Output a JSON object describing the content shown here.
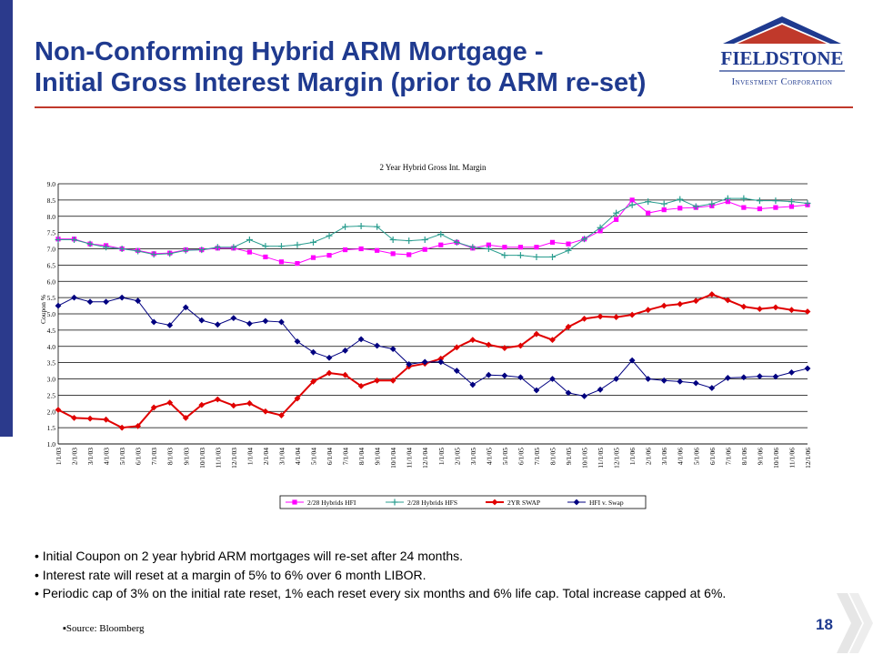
{
  "header": {
    "title_line1": "Non-Conforming Hybrid ARM Mortgage -",
    "title_line2": "Initial Gross Interest Margin (prior to ARM re-set)"
  },
  "logo": {
    "name": "FIELDSTONE",
    "subtitle": "Investment Corporation"
  },
  "bullets": [
    "Initial Coupon on 2 year hybrid ARM mortgages will re-set after 24 months.",
    "Interest rate will reset at a margin of 5% to 6% over 6 month LIBOR.",
    "Periodic cap of 3% on the initial rate reset, 1% each reset every six months and 6% life cap. Total increase capped at 6%."
  ],
  "source": "Source: Bloomberg",
  "page_number": "18",
  "colors": {
    "brand_blue": "#1f3a8f",
    "accent_red": "#c0392b",
    "series_hfi": "#ff00ff",
    "series_hfs": "#2a9d8f",
    "series_swap": "#e00000",
    "series_spread": "#000080"
  },
  "chart_data": {
    "type": "line",
    "title": "2 Year Hybrid Gross Int. Margin",
    "ylabel": "Coupon %",
    "xlabel": "",
    "ylim": [
      1.0,
      9.0
    ],
    "yticks": [
      "1.0",
      "1.5",
      "2.0",
      "2.5",
      "3.0",
      "3.5",
      "4.0",
      "4.5",
      "5.0",
      "5.5",
      "6.0",
      "6.5",
      "7.0",
      "7.5",
      "8.0",
      "8.5",
      "9.0"
    ],
    "grid": "horizontal",
    "legend_position": "bottom",
    "categories": [
      "1/1/03",
      "2/1/03",
      "3/1/03",
      "4/1/03",
      "5/1/03",
      "6/1/03",
      "7/1/03",
      "8/1/03",
      "9/1/03",
      "10/1/03",
      "11/1/03",
      "12/1/03",
      "1/1/04",
      "2/1/04",
      "3/1/04",
      "4/1/04",
      "5/1/04",
      "6/1/04",
      "7/1/04",
      "8/1/04",
      "9/1/04",
      "10/1/04",
      "11/1/04",
      "12/1/04",
      "1/1/05",
      "2/1/05",
      "3/1/05",
      "4/1/05",
      "5/1/05",
      "6/1/05",
      "7/1/05",
      "8/1/05",
      "9/1/05",
      "10/1/05",
      "11/1/05",
      "12/1/05",
      "1/1/06",
      "2/1/06",
      "3/1/06",
      "4/1/06",
      "5/1/06",
      "6/1/06",
      "7/1/06",
      "8/1/06",
      "9/1/06",
      "10/1/06",
      "11/1/06",
      "12/1/06"
    ],
    "series": [
      {
        "name": "2/28 Hybrids HFI",
        "marker": "square",
        "color": "#ff00ff",
        "values": [
          7.3,
          7.3,
          7.15,
          7.1,
          7.0,
          6.95,
          6.85,
          6.87,
          6.97,
          6.97,
          7.02,
          7.02,
          6.9,
          6.75,
          6.6,
          6.55,
          6.73,
          6.8,
          6.97,
          7.0,
          6.95,
          6.85,
          6.82,
          6.98,
          7.12,
          7.2,
          7.02,
          7.12,
          7.05,
          7.05,
          7.05,
          7.2,
          7.15,
          7.3,
          7.55,
          7.9,
          8.5,
          8.1,
          8.2,
          8.25,
          8.27,
          8.32,
          8.45,
          8.27,
          8.23,
          8.27,
          8.3,
          8.35
        ]
      },
      {
        "name": "2/28 Hybrids HFS",
        "marker": "plus",
        "color": "#2a9d8f",
        "values": [
          7.28,
          7.28,
          7.15,
          7.05,
          7.0,
          6.93,
          6.83,
          6.85,
          6.95,
          6.97,
          7.05,
          7.05,
          7.28,
          7.08,
          7.08,
          7.12,
          7.2,
          7.4,
          7.68,
          7.7,
          7.68,
          7.28,
          7.25,
          7.28,
          7.45,
          7.2,
          7.05,
          7.0,
          6.8,
          6.8,
          6.75,
          6.75,
          6.95,
          7.3,
          7.65,
          8.1,
          8.35,
          8.45,
          8.38,
          8.52,
          8.3,
          8.38,
          8.55,
          8.55,
          8.48,
          8.48,
          8.45,
          8.4
        ]
      },
      {
        "name": "2YR SWAP",
        "marker": "diamond",
        "color": "#e00000",
        "values": [
          2.05,
          1.8,
          1.78,
          1.75,
          1.5,
          1.55,
          2.12,
          2.27,
          1.8,
          2.2,
          2.37,
          2.18,
          2.25,
          2.0,
          1.88,
          2.4,
          2.92,
          3.18,
          3.12,
          2.78,
          2.95,
          2.95,
          3.38,
          3.47,
          3.62,
          3.97,
          4.2,
          4.05,
          3.95,
          4.02,
          4.38,
          4.2,
          4.6,
          4.85,
          4.92,
          4.9,
          4.97,
          5.12,
          5.25,
          5.3,
          5.4,
          5.6,
          5.42,
          5.22,
          5.15,
          5.2,
          5.12,
          5.07
        ]
      },
      {
        "name": "HFI v. Swap",
        "marker": "diamond",
        "color": "#000080",
        "values": [
          5.25,
          5.5,
          5.37,
          5.37,
          5.5,
          5.4,
          4.75,
          4.65,
          5.2,
          4.8,
          4.67,
          4.87,
          4.7,
          4.78,
          4.75,
          4.15,
          3.82,
          3.65,
          3.87,
          4.22,
          4.02,
          3.92,
          3.45,
          3.52,
          3.52,
          3.25,
          2.82,
          3.12,
          3.1,
          3.05,
          2.65,
          3.0,
          2.57,
          2.47,
          2.67,
          3.0,
          3.57,
          3.0,
          2.95,
          2.92,
          2.87,
          2.72,
          3.03,
          3.05,
          3.08,
          3.07,
          3.2,
          3.32
        ]
      }
    ]
  }
}
